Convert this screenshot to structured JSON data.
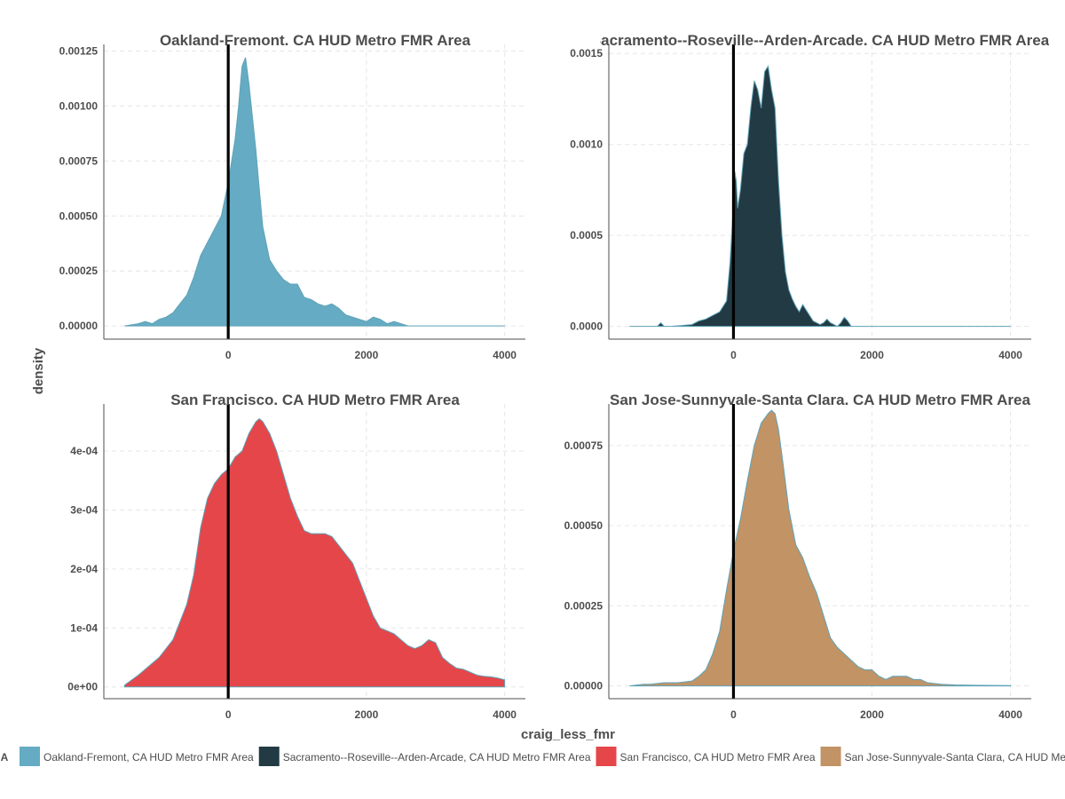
{
  "chart_data": [
    {
      "type": "area",
      "title": "Oakland-Fremont. CA HUD Metro FMR Area",
      "fill": "#65abc3",
      "xlim": [
        -1800,
        4300
      ],
      "ylim": [
        -6e-05,
        0.00128
      ],
      "xticks": [
        0,
        2000,
        4000
      ],
      "xtick_labels": [
        "0",
        "2000",
        "4000"
      ],
      "yticks": [
        0,
        0.00025,
        0.0005,
        0.00075,
        0.001,
        0.00125
      ],
      "ytick_labels": [
        "0.00000",
        "0.00025",
        "0.00050",
        "0.00075",
        "0.00100",
        "0.00125"
      ],
      "vline": 0,
      "x": [
        -1500,
        -1300,
        -1200,
        -1100,
        -1000,
        -900,
        -800,
        -700,
        -600,
        -500,
        -400,
        -300,
        -200,
        -100,
        0,
        100,
        150,
        200,
        250,
        300,
        350,
        400,
        450,
        500,
        600,
        700,
        800,
        900,
        1000,
        1100,
        1200,
        1300,
        1400,
        1500,
        1600,
        1700,
        1800,
        1900,
        2000,
        2100,
        2200,
        2300,
        2400,
        2500,
        2600,
        2700,
        3000,
        4000
      ],
      "y": [
        0.0,
        1e-05,
        2e-05,
        1e-05,
        3e-05,
        4e-05,
        6e-05,
        0.0001,
        0.00014,
        0.00022,
        0.00032,
        0.00038,
        0.00044,
        0.0005,
        0.00065,
        0.00085,
        0.001,
        0.00118,
        0.00122,
        0.0011,
        0.00095,
        0.0008,
        0.00062,
        0.00045,
        0.0003,
        0.00025,
        0.00021,
        0.00019,
        0.00019,
        0.00013,
        0.00012,
        0.0001,
        9e-05,
        0.0001,
        8e-05,
        5e-05,
        4e-05,
        3e-05,
        2e-05,
        4e-05,
        3e-05,
        1e-05,
        2e-05,
        1e-05,
        0.0,
        0.0,
        0.0,
        0.0
      ]
    },
    {
      "type": "area",
      "title": "Sacramento--Roseville--Arden-Arcade. CA HUD Metro FMR Area",
      "fill": "#223a43",
      "xlim": [
        -1800,
        4300
      ],
      "ylim": [
        -7e-05,
        0.00155
      ],
      "xticks": [
        0,
        2000,
        4000
      ],
      "xtick_labels": [
        "0",
        "2000",
        "4000"
      ],
      "yticks": [
        0,
        0.0005,
        0.001,
        0.0015
      ],
      "ytick_labels": [
        "0.0000",
        "0.0005",
        "0.0010",
        "0.0015"
      ],
      "vline": 0,
      "x": [
        -1500,
        -1100,
        -1050,
        -1000,
        -900,
        -600,
        -500,
        -400,
        -300,
        -200,
        -100,
        -50,
        0,
        20,
        40,
        60,
        100,
        150,
        200,
        250,
        300,
        350,
        400,
        450,
        500,
        550,
        600,
        650,
        700,
        750,
        800,
        850,
        900,
        950,
        1000,
        1050,
        1100,
        1150,
        1200,
        1250,
        1300,
        1350,
        1400,
        1450,
        1500,
        1550,
        1600,
        1650,
        1700,
        4000
      ],
      "y": [
        0.0,
        0.0,
        2e-05,
        0.0,
        0.0,
        1e-05,
        3e-05,
        4e-05,
        6e-05,
        8e-05,
        0.00014,
        0.00035,
        0.00068,
        0.00085,
        0.0008,
        0.00065,
        0.00075,
        0.00095,
        0.001,
        0.0012,
        0.00135,
        0.0013,
        0.0012,
        0.0014,
        0.00143,
        0.0013,
        0.0012,
        0.0008,
        0.0005,
        0.0003,
        0.0002,
        0.00015,
        0.00011,
        8e-05,
        0.00012,
        9e-05,
        6e-05,
        3e-05,
        2e-05,
        1e-05,
        2e-05,
        4e-05,
        2e-05,
        1e-05,
        0.0,
        2e-05,
        5e-05,
        3e-05,
        0.0,
        0.0
      ]
    },
    {
      "type": "area",
      "title": "San Francisco. CA HUD Metro FMR Area",
      "fill": "#e5464a",
      "xlim": [
        -1800,
        4300
      ],
      "ylim": [
        -2e-05,
        0.00048
      ],
      "xticks": [
        0,
        2000,
        4000
      ],
      "xtick_labels": [
        "0",
        "2000",
        "4000"
      ],
      "yticks": [
        0,
        0.0001,
        0.0002,
        0.0003,
        0.0004
      ],
      "ytick_labels": [
        "0e+00",
        "1e-04",
        "2e-04",
        "3e-04",
        "4e-04"
      ],
      "vline": 0,
      "x": [
        -1500,
        -1300,
        -1000,
        -800,
        -600,
        -500,
        -400,
        -300,
        -200,
        -100,
        0,
        100,
        200,
        300,
        400,
        450,
        500,
        550,
        600,
        700,
        800,
        900,
        1000,
        1100,
        1200,
        1300,
        1400,
        1500,
        1600,
        1700,
        1800,
        1900,
        2000,
        2100,
        2200,
        2300,
        2400,
        2500,
        2600,
        2700,
        2800,
        2900,
        3000,
        3100,
        3200,
        3300,
        3400,
        3500,
        3600,
        3700,
        3800,
        3900,
        4000
      ],
      "y": [
        3e-06,
        2e-05,
        5e-05,
        8e-05,
        0.00014,
        0.00019,
        0.00027,
        0.00032,
        0.000345,
        0.00036,
        0.00037,
        0.00039,
        0.0004,
        0.00043,
        0.00045,
        0.000455,
        0.00045,
        0.00044,
        0.00043,
        0.0004,
        0.00036,
        0.00032,
        0.00029,
        0.000265,
        0.00026,
        0.00026,
        0.00026,
        0.000255,
        0.00024,
        0.000225,
        0.00021,
        0.00018,
        0.00015,
        0.00012,
        0.0001,
        9.5e-05,
        9e-05,
        8e-05,
        7e-05,
        6.5e-05,
        7e-05,
        8e-05,
        7.5e-05,
        5e-05,
        4e-05,
        3.2e-05,
        3e-05,
        2.5e-05,
        2e-05,
        1.8e-05,
        1.7e-05,
        1.5e-05,
        1.2e-05
      ]
    },
    {
      "type": "area",
      "title": "San Jose-Sunnyvale-Santa Clara. CA HUD Metro FMR Area",
      "fill": "#c19365",
      "xlim": [
        -1800,
        4300
      ],
      "ylim": [
        -4e-05,
        0.00088
      ],
      "xticks": [
        0,
        2000,
        4000
      ],
      "xtick_labels": [
        "0",
        "2000",
        "4000"
      ],
      "yticks": [
        0,
        0.00025,
        0.0005,
        0.00075
      ],
      "ytick_labels": [
        "0.00000",
        "0.00025",
        "0.00050",
        "0.00075"
      ],
      "vline": 0,
      "x": [
        -1500,
        -1300,
        -1200,
        -1000,
        -800,
        -600,
        -500,
        -400,
        -300,
        -200,
        -100,
        0,
        100,
        200,
        300,
        400,
        500,
        550,
        600,
        650,
        700,
        800,
        900,
        1000,
        1100,
        1200,
        1300,
        1400,
        1500,
        1600,
        1700,
        1800,
        1900,
        2000,
        2100,
        2200,
        2300,
        2400,
        2500,
        2600,
        2700,
        2800,
        3000,
        3200,
        3500,
        4000
      ],
      "y": [
        0.0,
        5e-06,
        5e-06,
        1e-05,
        1e-05,
        1.5e-05,
        3e-05,
        5e-05,
        0.0001,
        0.00017,
        0.0003,
        0.00042,
        0.00052,
        0.00064,
        0.00075,
        0.00082,
        0.00085,
        0.00086,
        0.00085,
        0.0008,
        0.00072,
        0.00055,
        0.00044,
        0.0004,
        0.00034,
        0.00029,
        0.00022,
        0.00015,
        0.00012,
        0.0001,
        8e-05,
        6e-05,
        5e-05,
        5e-05,
        3e-05,
        2e-05,
        3e-05,
        3e-05,
        3e-05,
        2e-05,
        2e-05,
        1e-05,
        5e-06,
        3e-06,
        2e-06,
        1e-06
      ]
    }
  ],
  "axes": {
    "xlabel": "craig_less_fmr",
    "ylabel": "density"
  },
  "legend": {
    "placement": "bottom",
    "na_label": "NA",
    "entries": [
      {
        "label": "Oakland-Fremont, CA HUD Metro FMR Area",
        "color": "#65abc3"
      },
      {
        "label": "Sacramento--Roseville--Arden-Arcade, CA HUD Metro FMR Area",
        "color": "#223a43"
      },
      {
        "label": "San Francisco, CA HUD Metro FMR Area",
        "color": "#e5464a"
      },
      {
        "label": "San Jose-Sunnyvale-Santa Clara, CA HUD Metro FMR Area",
        "color": "#c19365"
      }
    ]
  },
  "colors": {
    "outline": "#5fa3b8",
    "vline": "#000000",
    "text": "#4d4d4d"
  }
}
